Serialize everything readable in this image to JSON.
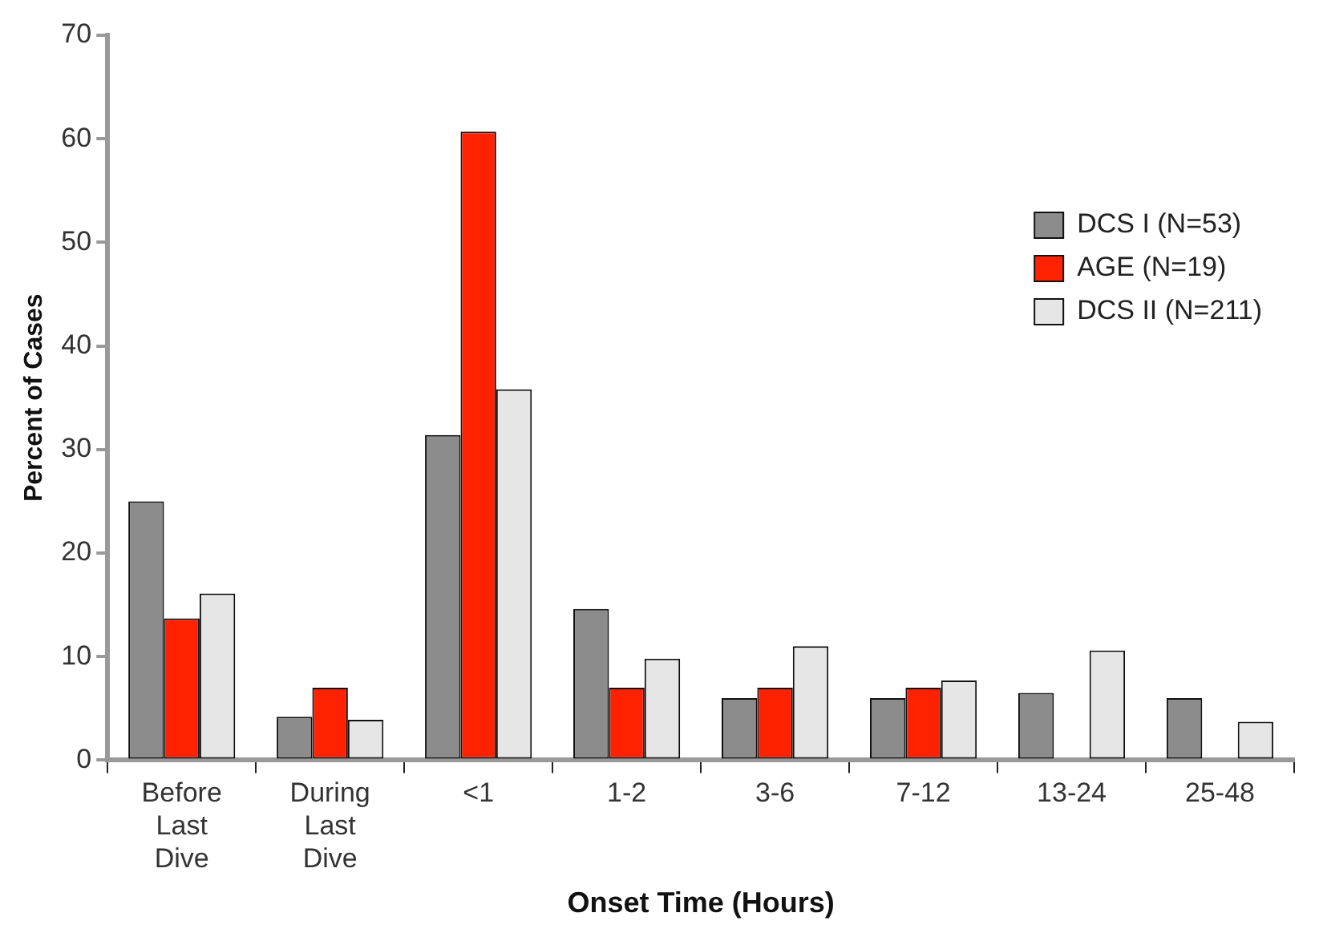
{
  "chart_data": {
    "type": "bar",
    "xlabel": "Onset Time (Hours)",
    "ylabel": "Percent of Cases",
    "categories": [
      "Before Last Dive",
      "During Last Dive",
      "<1",
      "1-2",
      "3-6",
      "7-12",
      "13-24",
      "25-48"
    ],
    "series": [
      {
        "name": "DCS I (N=53)",
        "color": "#8c8c8c",
        "values": [
          25,
          4.2,
          31.4,
          14.6,
          6,
          6,
          6.5,
          6
        ]
      },
      {
        "name": "AGE (N=19)",
        "color": "#ff2200",
        "values": [
          13.7,
          7,
          60.7,
          7,
          7,
          7,
          null,
          null
        ]
      },
      {
        "name": "DCS II (N=211)",
        "color": "#e6e6e6",
        "values": [
          16.1,
          3.9,
          35.8,
          9.8,
          11,
          7.7,
          10.6,
          3.7
        ]
      }
    ],
    "ylim": [
      0,
      70
    ],
    "yticks": [
      0,
      10,
      20,
      30,
      40,
      50,
      60,
      70
    ],
    "grid": false,
    "legend": "top right"
  }
}
